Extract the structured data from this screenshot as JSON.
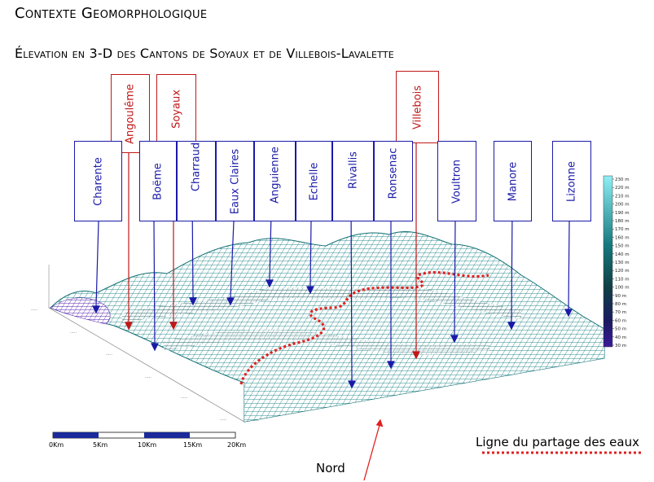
{
  "title": "Contexte Geomorphologique",
  "subtitle": "Élevation en 3-D des Cantons de Soyaux et de Villebois-Lavalette",
  "towns": [
    {
      "name": "Angoulême",
      "color": "#c01818"
    },
    {
      "name": "Soyaux",
      "color": "#c01818"
    },
    {
      "name": "Villebois",
      "color": "#c01818"
    }
  ],
  "rivers": [
    {
      "name": "Charente",
      "color": "#1a1aa8"
    },
    {
      "name": "Boëme",
      "color": "#1a1aa8"
    },
    {
      "name": "Charraud",
      "color": "#1a1aa8"
    },
    {
      "name": "Eaux Claires",
      "color": "#1a1aa8"
    },
    {
      "name": "Anguienne",
      "color": "#1a1aa8"
    },
    {
      "name": "Echelle",
      "color": "#1a1aa8"
    },
    {
      "name": "Rivallis",
      "color": "#1a1aa8"
    },
    {
      "name": "Ronsenac",
      "color": "#1a1aa8"
    },
    {
      "name": "Voultron",
      "color": "#1a1aa8"
    },
    {
      "name": "Manore",
      "color": "#1a1aa8"
    },
    {
      "name": "Lizonne",
      "color": "#1a1aa8"
    }
  ],
  "elevation_legend": [
    "230 m",
    "220 m",
    "210 m",
    "200 m",
    "190 m",
    "180 m",
    "170 m",
    "160 m",
    "150 m",
    "140 m",
    "130 m",
    "120 m",
    "110 m",
    "100 m",
    "90 m",
    "80 m",
    "70 m",
    "60 m",
    "50 m",
    "40 m",
    "30 m"
  ],
  "elevation_colors": {
    "low": "#3a1a9a",
    "mid": "#0f6f73",
    "high": "#7fe3ec"
  },
  "scale_bar": [
    "0Km",
    "5Km",
    "10Km",
    "15Km",
    "20Km"
  ],
  "watershed_legend": "Ligne du partage des eaux",
  "watershed_color": "#e02020",
  "north_label": "Nord"
}
